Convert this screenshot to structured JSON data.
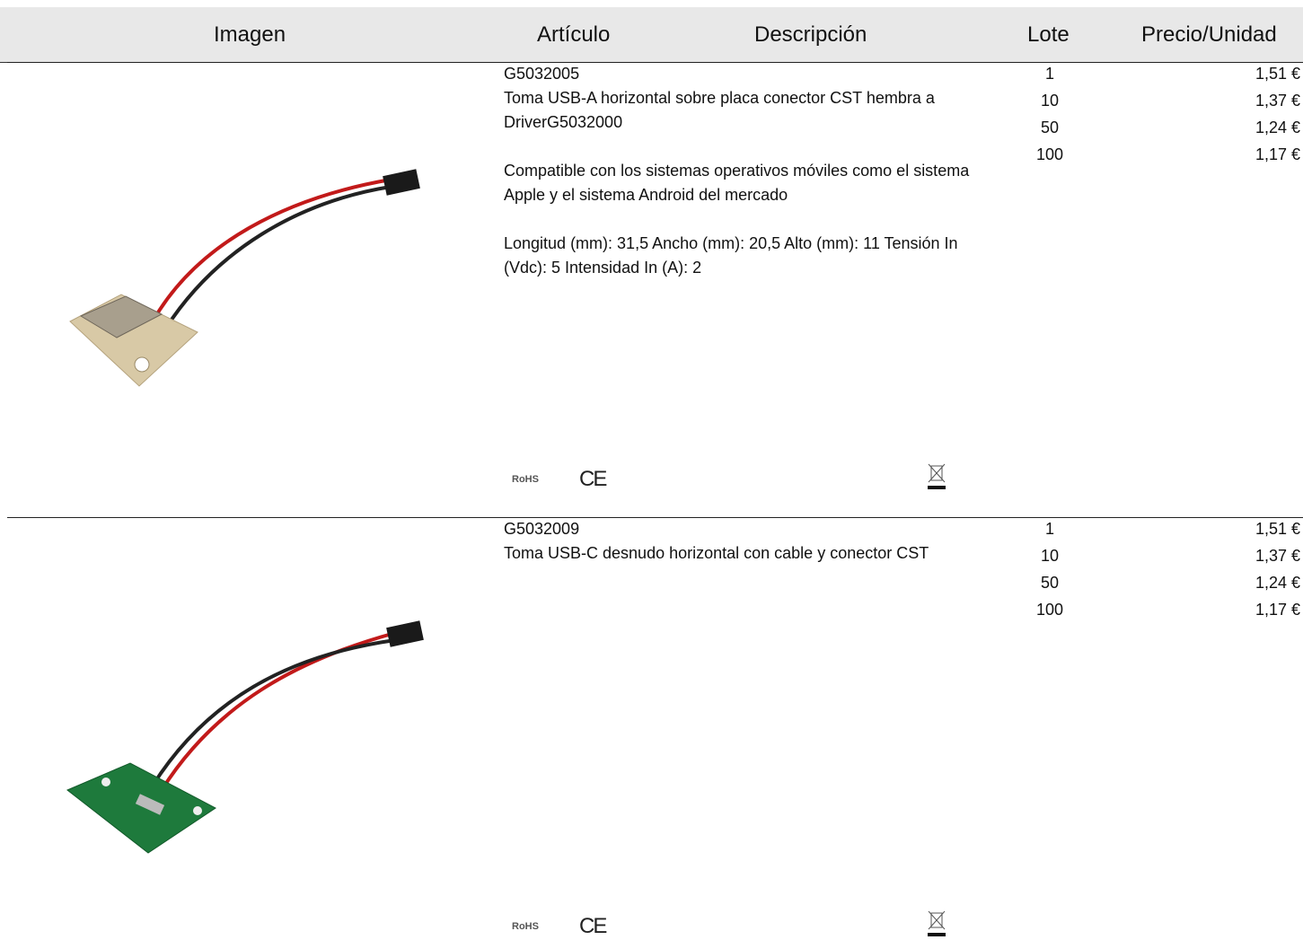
{
  "header": {
    "columns": [
      "Imagen",
      "Artículo",
      "Descripción",
      "Lote",
      "Precio/Unidad"
    ]
  },
  "products": [
    {
      "code": "G5032005",
      "description": [
        "Toma USB-A horizontal sobre placa conector CST hembra a DriverG5032000",
        "Compatible con los sistemas operativos móviles como el sistema Apple y el sistema Android del mercado",
        "Longitud (mm): 31,5 Ancho (mm): 20,5 Alto (mm): 11 Tensión In (Vdc): 5 Intensidad In (A): 2"
      ],
      "prices": [
        {
          "lot": "1",
          "price": "1,51 €"
        },
        {
          "lot": "10",
          "price": "1,37 €"
        },
        {
          "lot": "50",
          "price": "1,24 €"
        },
        {
          "lot": "100",
          "price": "1,17 €"
        }
      ],
      "marks": [
        "RoHS",
        "CE"
      ]
    },
    {
      "code": "G5032009",
      "description": [
        "Toma USB-C desnudo horizontal con cable y conector CST"
      ],
      "prices": [
        {
          "lot": "1",
          "price": "1,51 €"
        },
        {
          "lot": "10",
          "price": "1,37 €"
        },
        {
          "lot": "50",
          "price": "1,24 €"
        },
        {
          "lot": "100",
          "price": "1,17 €"
        }
      ],
      "marks": [
        "RoHS",
        "CE"
      ]
    }
  ]
}
